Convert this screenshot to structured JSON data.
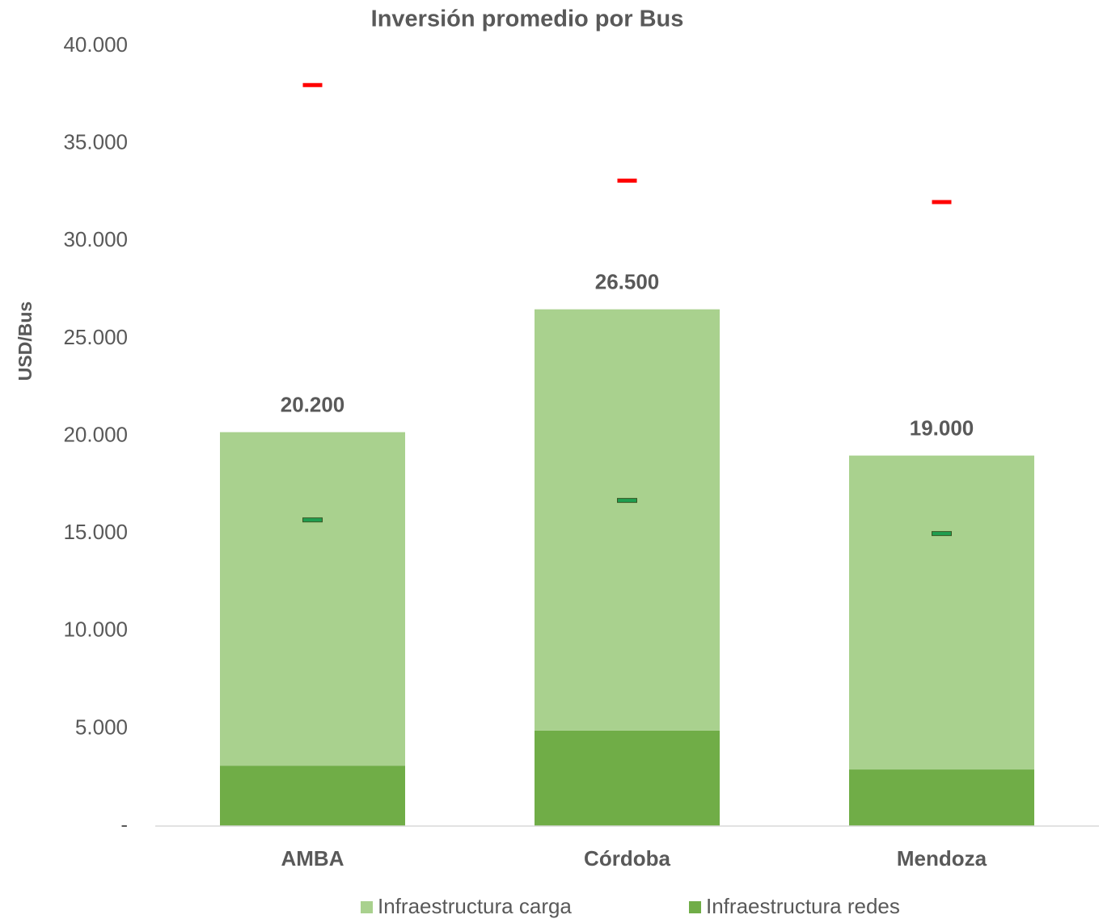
{
  "chart_data": {
    "type": "bar",
    "stacked": true,
    "title": "Inversión promedio por Bus",
    "y_label": "USD/Bus",
    "categories": [
      "AMBA",
      "Córdoba",
      "Mendoza"
    ],
    "series": [
      {
        "name": "Infraestructura redes",
        "color": "#70ad47",
        "values": [
          3100,
          4900,
          2900
        ]
      },
      {
        "name": "Infraestructura carga",
        "color": "#a9d18e",
        "values": [
          17100,
          21600,
          16100
        ]
      }
    ],
    "totals": {
      "values": [
        20200,
        26500,
        19000
      ],
      "value_labels": [
        "20.200",
        "26.500",
        "19.000"
      ]
    },
    "markers": [
      {
        "color": "#ff0000",
        "values": [
          38000,
          33100,
          32000
        ]
      },
      {
        "color": "#1f9e50",
        "values": [
          15700,
          16700,
          15000
        ]
      }
    ],
    "ylim": [
      0,
      40000
    ],
    "yticks": [
      {
        "value": 0,
        "label": "-"
      },
      {
        "value": 5000,
        "label": "5.000"
      },
      {
        "value": 10000,
        "label": "10.000"
      },
      {
        "value": 15000,
        "label": "15.000"
      },
      {
        "value": 20000,
        "label": "20.000"
      },
      {
        "value": 25000,
        "label": "25.000"
      },
      {
        "value": 30000,
        "label": "30.000"
      },
      {
        "value": 35000,
        "label": "35.000"
      },
      {
        "value": 40000,
        "label": "40.000"
      }
    ],
    "legend_order": [
      1,
      0
    ]
  }
}
